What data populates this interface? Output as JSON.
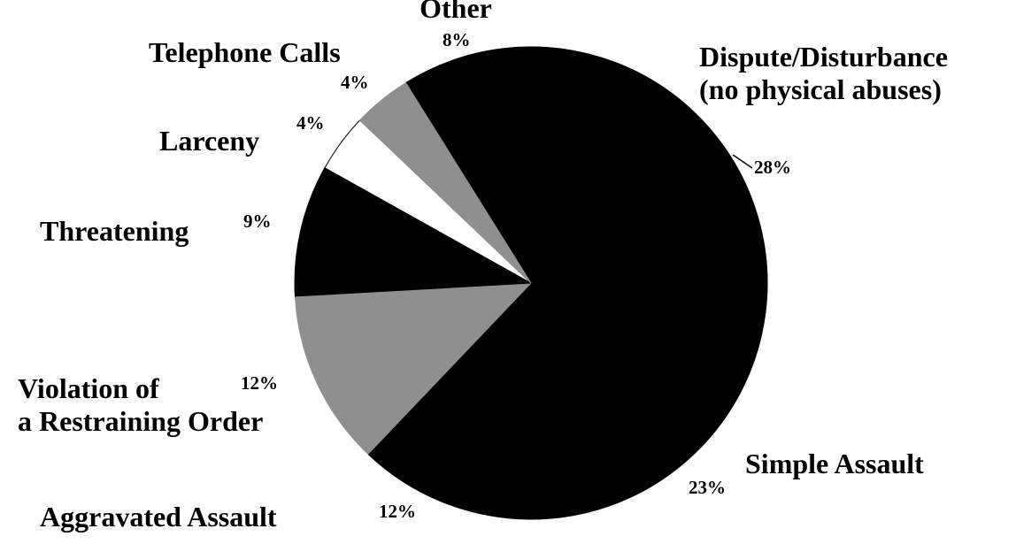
{
  "chart_data": {
    "type": "pie",
    "categories": [
      "Other",
      "Dispute/Disturbance\n(no physical abuses)",
      "Simple Assault",
      "Aggravated Assault",
      "Violation of\na Restraining Order",
      "Threatening",
      "Larceny",
      "Telephone Calls"
    ],
    "values": [
      8,
      28,
      23,
      12,
      12,
      9,
      4,
      4
    ],
    "value_labels": [
      "8%",
      "28%",
      "23%",
      "12%",
      "12%",
      "9%",
      "4%",
      "4%"
    ],
    "colors": [
      "#000000",
      "#000000",
      "#000000",
      "#000000",
      "#8f8f8f",
      "#000000",
      "#ffffff",
      "#8f8f8f"
    ]
  }
}
